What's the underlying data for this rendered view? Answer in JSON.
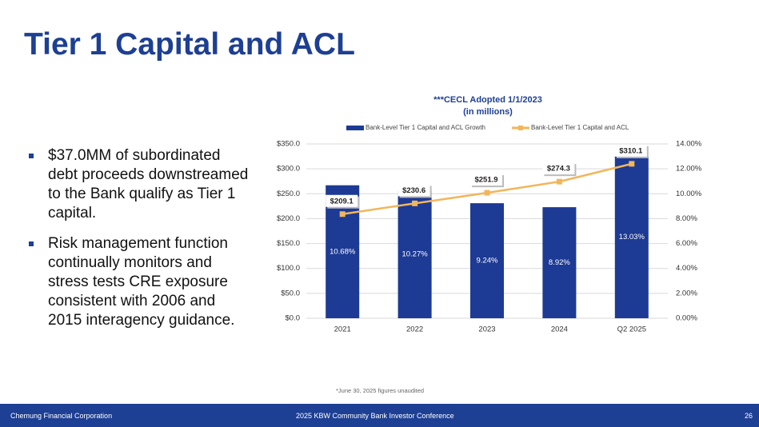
{
  "header": {
    "title": "Tier 1 Capital and ACL"
  },
  "bullets": [
    "$37.0MM of subordinated debt proceeds downstreamed to the Bank qualify as Tier 1 capital.",
    "Risk management function continually monitors and stress tests CRE exposure consistent with 2006 and 2015 interagency guidance."
  ],
  "chart_data": {
    "type": "bar",
    "title": "***CECL Adopted 1/1/2023",
    "subtitle": "(in millions)",
    "categories": [
      "2021",
      "2022",
      "2023",
      "2024",
      "Q2 2025"
    ],
    "series": [
      {
        "name": "Bank-Level Tier 1 Capital and ACL Growth",
        "type": "bar",
        "axis": "y2",
        "color": "#1d3a94",
        "values": [
          10.68,
          10.27,
          9.24,
          8.92,
          13.03
        ],
        "value_labels": [
          "10.68%",
          "10.27%",
          "9.24%",
          "8.92%",
          "13.03%"
        ]
      },
      {
        "name": "Bank-Level Tier 1 Capital and ACL",
        "type": "line",
        "color": "#f2b65a",
        "values": [
          209.1,
          230.6,
          251.9,
          274.3,
          310.1
        ],
        "value_labels": [
          "$209.1",
          "$230.6",
          "$251.9",
          "$274.3",
          "$310.1"
        ]
      }
    ],
    "ylim": [
      0,
      350
    ],
    "yticks": [
      {
        "value": 0,
        "label": "$0.0"
      },
      {
        "value": 50,
        "label": "$50.0"
      },
      {
        "value": 100,
        "label": "$100.0"
      },
      {
        "value": 150,
        "label": "$150.0"
      },
      {
        "value": 200,
        "label": "$200.0"
      },
      {
        "value": 250,
        "label": "$250.0"
      },
      {
        "value": 300,
        "label": "$300.0"
      },
      {
        "value": 350,
        "label": "$350.0"
      }
    ],
    "y2lim": [
      0,
      14
    ],
    "y2ticks": [
      {
        "value": 0,
        "label": "0.00%"
      },
      {
        "value": 2,
        "label": "2.00%"
      },
      {
        "value": 4,
        "label": "4.00%"
      },
      {
        "value": 6,
        "label": "6.00%"
      },
      {
        "value": 8,
        "label": "8.00%"
      },
      {
        "value": 10,
        "label": "10.00%"
      },
      {
        "value": 12,
        "label": "12.00%"
      },
      {
        "value": 14,
        "label": "14.00%"
      }
    ],
    "grid": true,
    "legend": "top"
  },
  "footnote": "*June 30, 2025 figures unaudited",
  "footer": {
    "left": "Chemung Financial Corporation",
    "center": "2025 KBW Community Bank Investor Conference",
    "page": "26"
  }
}
